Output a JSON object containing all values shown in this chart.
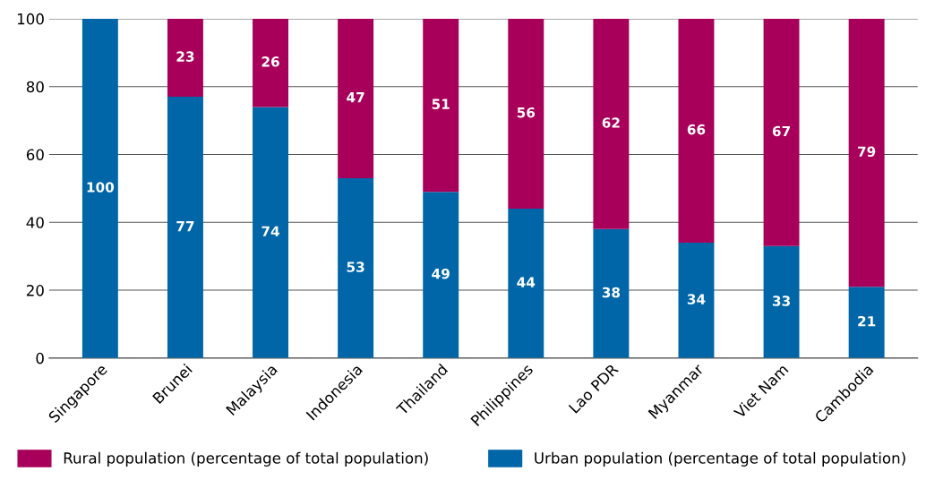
{
  "chart_data": {
    "type": "bar",
    "stacked": true,
    "categories": [
      "Singapore",
      "Brunei",
      "Malaysia",
      "Indonesia",
      "Thailand",
      "Philippines",
      "Lao PDR",
      "Myanmar",
      "Viet Nam",
      "Cambodia"
    ],
    "series": [
      {
        "name": "Urban population (percentage of total population)",
        "color": "#0066a8",
        "values": [
          100,
          77,
          74,
          53,
          49,
          44,
          38,
          34,
          33,
          21
        ],
        "value_labels": [
          "100",
          "77",
          "74",
          "53",
          "49",
          "44",
          "38",
          "34",
          "33",
          "21"
        ]
      },
      {
        "name": "Rural population (percentage of total population)",
        "color": "#a8005a",
        "values": [
          0,
          23,
          26,
          47,
          51,
          56,
          62,
          66,
          67,
          79
        ],
        "value_labels": [
          null,
          "23",
          "26",
          "47",
          "51",
          "56",
          "62",
          "66",
          "67",
          "79"
        ]
      }
    ],
    "ylim": [
      0,
      100
    ],
    "yticks": [
      0,
      20,
      40,
      60,
      80,
      100
    ],
    "grid": "y",
    "legend": "bottom"
  }
}
